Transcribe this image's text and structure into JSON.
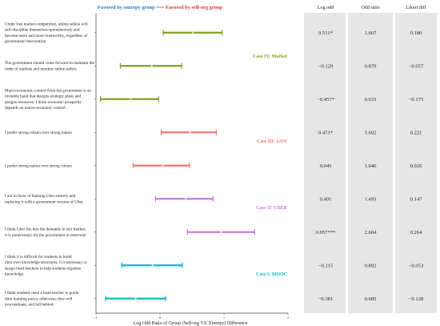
{
  "chart_data": {
    "type": "forest",
    "legend": [
      {
        "label": "Favored by entropy group",
        "arrow": "⇦",
        "color": "#1f77d4"
      },
      {
        "label": "Favored by self-org group",
        "arrow": "⇨",
        "color": "#e03030"
      }
    ],
    "xlabel": "Log Odd Ratio of Group (Self-org VS. Entropy) Difference",
    "xlim": [
      -1,
      2
    ],
    "xticks": [
      "-1",
      "0",
      "1",
      "2"
    ],
    "columns": [
      "Log odd",
      "Odd ratio",
      "Likert diff"
    ],
    "cases": [
      {
        "label": "Case IV: Market",
        "color": "#80a020",
        "rows": [
          0,
          1,
          2
        ]
      },
      {
        "label": "Case III: GOV",
        "color": "#f07878",
        "rows": [
          3,
          4
        ]
      },
      {
        "label": "Case II: UBER",
        "color": "#c878e8",
        "rows": [
          5,
          6
        ]
      },
      {
        "label": "Case I: MOOC",
        "color": "#10b8c8",
        "rows": [
          7,
          8
        ]
      }
    ],
    "rows": [
      {
        "statement": "Under free market competition, online sellers will self-discipline themselves spontaneously and become more and more trustworthy, regardless of government intervention.",
        "estimate": 0.511,
        "ci": [
          0.05,
          0.97
        ],
        "log_odd": "0.511*",
        "odd_ratio": "1.667",
        "likert_diff": "0.180"
      },
      {
        "statement": "The government should come forward to maintain the order of markets and monitor online sellers",
        "estimate": -0.129,
        "ci": [
          -0.62,
          0.34
        ],
        "log_odd": "−0.129",
        "odd_ratio": "0.879",
        "likert_diff": "−0.057"
      },
      {
        "statement": "Macro-economic-control from the government is an invisible hand that designs strategic plans and assigns resources. I think economic prosperity depends on macro-economic control.",
        "estimate": -0.457,
        "ci": [
          -0.93,
          -0.02
        ],
        "log_odd": "−0.457*",
        "odd_ratio": "0.633",
        "likert_diff": "−0.175"
      },
      {
        "statement": "I prefer strong citizen over strong nation",
        "estimate": 0.471,
        "ci": [
          0.02,
          0.88
        ],
        "log_odd": "0.471*",
        "odd_ratio": "1.602",
        "likert_diff": "0.221"
      },
      {
        "statement": "I prefer strong nation over strong citizen",
        "estimate": 0.045,
        "ci": [
          -0.42,
          0.46
        ],
        "log_odd": "0.045",
        "odd_ratio": "1.046",
        "likert_diff": "0.026"
      },
      {
        "statement": "I am in favor of banning Uber entirely and replacing it with a government version of Uber.",
        "estimate": 0.401,
        "ci": [
          -0.07,
          0.83
        ],
        "log_odd": "0.401",
        "odd_ratio": "1.493",
        "likert_diff": "0.147"
      },
      {
        "statement": "I think Uber fits into the demands in taxi market; it is unnecessary for the government to intervene",
        "estimate": 0.957,
        "ci": [
          0.43,
          1.48
        ],
        "log_odd": "0.957***",
        "odd_ratio": "2.604",
        "likert_diff": "0.264"
      },
      {
        "statement": "I think it is difficult for students to build their own knowledge structures; it is necessary to assign head teachers to help students organize knowledge.",
        "estimate": -0.115,
        "ci": [
          -0.6,
          0.35
        ],
        "log_odd": "−0.115",
        "odd_ratio": "0.892",
        "likert_diff": "−0.053"
      },
      {
        "statement": "I think students need a head teacher to guide their learning paces; otherwise, they will procrastinate, and fall behind.",
        "estimate": -0.381,
        "ci": [
          -0.85,
          0.09
        ],
        "log_odd": "−0.381",
        "odd_ratio": "0.685",
        "likert_diff": "−0.128"
      }
    ]
  }
}
